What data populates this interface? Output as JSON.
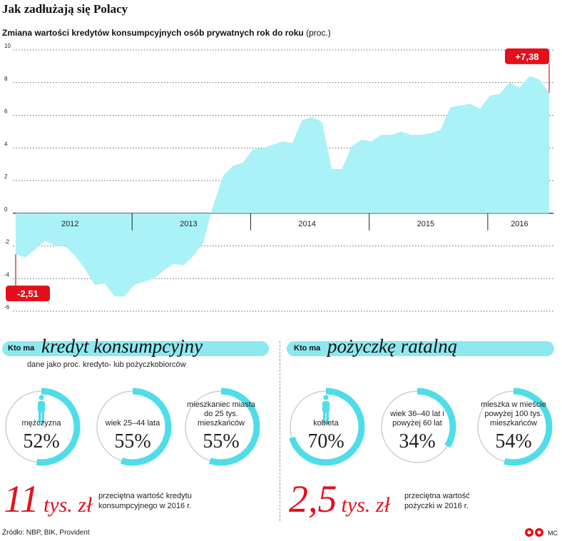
{
  "title": "Jak zadłużają się Polacy",
  "subtitle_bold": "Zmiana wartości kredytów konsumpcyjnych osób prywatnych rok do roku",
  "subtitle_unit": "(proc.)",
  "chart_data": {
    "type": "area",
    "title": "Zmiana wartości kredytów konsumpcyjnych osób prywatnych rok do roku",
    "ylabel": "proc.",
    "ylim": [
      -6,
      10
    ],
    "yticks": [
      "10",
      "8",
      "6",
      "4",
      "2",
      "0",
      "-2",
      "-4",
      "-6"
    ],
    "year_labels": [
      "2012",
      "2013",
      "2014",
      "2015",
      "2016"
    ],
    "grid": true,
    "color": "#aaf2f7",
    "x": [
      "2012-01",
      "2012-02",
      "2012-03",
      "2012-04",
      "2012-05",
      "2012-06",
      "2012-07",
      "2012-08",
      "2012-09",
      "2012-10",
      "2012-11",
      "2012-12",
      "2013-01",
      "2013-02",
      "2013-03",
      "2013-04",
      "2013-05",
      "2013-06",
      "2013-07",
      "2013-08",
      "2013-09",
      "2013-10",
      "2013-11",
      "2013-12",
      "2014-01",
      "2014-02",
      "2014-03",
      "2014-04",
      "2014-05",
      "2014-06",
      "2014-07",
      "2014-08",
      "2014-09",
      "2014-10",
      "2014-11",
      "2014-12",
      "2015-01",
      "2015-02",
      "2015-03",
      "2015-04",
      "2015-05",
      "2015-06",
      "2015-07",
      "2015-08",
      "2015-09",
      "2015-10",
      "2015-11",
      "2015-12",
      "2016-01",
      "2016-02",
      "2016-03",
      "2016-04",
      "2016-05",
      "2016-06",
      "2016-07"
    ],
    "values": [
      -2.51,
      -2.7,
      -2.2,
      -1.7,
      -2.0,
      -2.0,
      -2.6,
      -3.4,
      -4.4,
      -4.3,
      -5.1,
      -5.1,
      -4.4,
      -4.2,
      -4.0,
      -3.5,
      -3.1,
      -3.2,
      -2.6,
      -1.8,
      0.5,
      2.3,
      2.9,
      3.1,
      3.9,
      4.0,
      4.2,
      4.4,
      4.3,
      5.7,
      5.9,
      5.6,
      2.7,
      2.7,
      4.1,
      4.5,
      4.4,
      4.8,
      4.8,
      5.0,
      4.8,
      4.8,
      4.9,
      5.1,
      6.5,
      6.6,
      6.7,
      6.4,
      7.2,
      7.3,
      8.0,
      7.7,
      8.4,
      8.2,
      7.38
    ],
    "annotations": [
      {
        "label": "-2,51",
        "x": "2012-01",
        "y": -2.51
      },
      {
        "label": "+7,38",
        "x": "2016-07",
        "y": 7.38
      }
    ]
  },
  "left_section": {
    "prefix": "Kto ma",
    "heading": "kredyt konsumpcyjny",
    "subtitle": "dane jako proc. kredyto- lub pożyczkobiorców",
    "rings": [
      {
        "label": "mężczyzna",
        "pct_text": "52%",
        "value": 52,
        "icon": "person-icon"
      },
      {
        "label": "wiek 25–44 lata",
        "pct_text": "55%",
        "value": 55
      },
      {
        "label": "mieszkaniec miasta do 25 tys. mieszkańców",
        "pct_text": "55%",
        "value": 55
      }
    ],
    "big_number": "11",
    "big_unit": "tys. zł",
    "note": "przeciętna wartość kredytu konsumpcyjnego w 2016 r."
  },
  "right_section": {
    "prefix": "Kto ma",
    "heading": "pożyczkę ratalną",
    "rings": [
      {
        "label": "kobieta",
        "pct_text": "70%",
        "value": 70,
        "icon": "person-icon"
      },
      {
        "label": "wiek 36–40 lat i powyżej 60 lat",
        "pct_text": "34%",
        "value": 34
      },
      {
        "label": "mieszka w mieście powyżej 100 tys. mieszkańców",
        "pct_text": "54%",
        "value": 54
      }
    ],
    "big_number": "2,5",
    "big_unit": "tys. zł",
    "note": "przeciętna wartość pożyczki w 2016 r."
  },
  "source": "Źródło: NBP, BIK, Provident",
  "logo_text": "MC",
  "colors": {
    "accent": "#e3101b",
    "area": "#aaf2f7",
    "ring": "#4fdde9",
    "ring_bg": "#cfcfcf",
    "header_bar": "#8ee8f0"
  }
}
